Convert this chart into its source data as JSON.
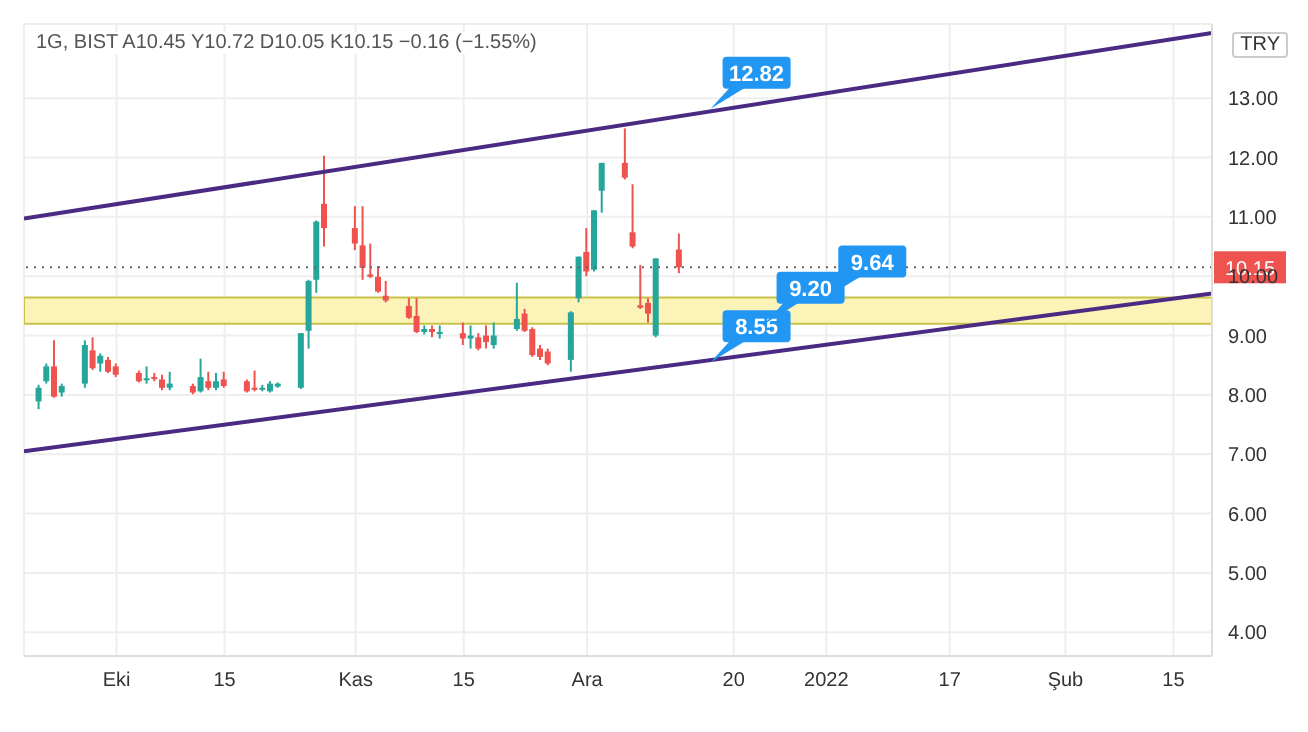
{
  "chart_data": {
    "type": "candlestick",
    "title": "1G, BIST  A10.45  Y10.72  D10.05  K10.15  −0.16 (−1.55%)",
    "x": [
      "2021-09-21",
      "2021-09-22",
      "2021-09-23",
      "2021-09-24",
      "2021-09-27",
      "2021-09-28",
      "2021-09-29",
      "2021-09-30",
      "2021-10-01",
      "2021-10-04",
      "2021-10-05",
      "2021-10-06",
      "2021-10-07",
      "2021-10-08",
      "2021-10-11",
      "2021-10-12",
      "2021-10-13",
      "2021-10-14",
      "2021-10-15",
      "2021-10-18",
      "2021-10-19",
      "2021-10-20",
      "2021-10-21",
      "2021-10-22",
      "2021-10-25",
      "2021-10-26",
      "2021-10-27",
      "2021-10-28",
      "2021-11-01",
      "2021-11-02",
      "2021-11-03",
      "2021-11-04",
      "2021-11-05",
      "2021-11-08",
      "2021-11-09",
      "2021-11-10",
      "2021-11-11",
      "2021-11-12",
      "2021-11-15",
      "2021-11-16",
      "2021-11-17",
      "2021-11-18",
      "2021-11-19",
      "2021-11-22",
      "2021-11-23",
      "2021-11-24",
      "2021-11-25",
      "2021-11-26",
      "2021-11-29",
      "2021-11-30",
      "2021-12-01",
      "2021-12-02",
      "2021-12-03",
      "2021-12-06",
      "2021-12-07",
      "2021-12-08",
      "2021-12-09",
      "2021-12-10",
      "2021-12-13"
    ],
    "ohlc": [
      [
        7.89,
        8.17,
        7.76,
        8.12
      ],
      [
        8.23,
        8.53,
        8.19,
        8.48
      ],
      [
        8.48,
        8.92,
        7.95,
        7.97
      ],
      [
        8.04,
        8.19,
        7.97,
        8.15
      ],
      [
        8.19,
        8.92,
        8.12,
        8.84
      ],
      [
        8.75,
        8.97,
        8.42,
        8.45
      ],
      [
        8.53,
        8.7,
        8.39,
        8.66
      ],
      [
        8.59,
        8.64,
        8.37,
        8.39
      ],
      [
        8.48,
        8.53,
        8.3,
        8.34
      ],
      [
        8.37,
        8.41,
        8.21,
        8.23
      ],
      [
        8.26,
        8.48,
        8.19,
        8.28
      ],
      [
        8.3,
        8.37,
        8.23,
        8.28
      ],
      [
        8.26,
        8.34,
        8.08,
        8.12
      ],
      [
        8.12,
        8.39,
        8.08,
        8.19
      ],
      [
        8.15,
        8.19,
        8.01,
        8.04
      ],
      [
        8.06,
        8.61,
        8.04,
        8.3
      ],
      [
        8.23,
        8.39,
        8.08,
        8.12
      ],
      [
        8.12,
        8.37,
        8.08,
        8.23
      ],
      [
        8.26,
        8.39,
        8.12,
        8.15
      ],
      [
        8.23,
        8.26,
        8.04,
        8.06
      ],
      [
        8.12,
        8.41,
        8.06,
        8.1
      ],
      [
        8.1,
        8.17,
        8.06,
        8.12
      ],
      [
        8.06,
        8.23,
        8.04,
        8.19
      ],
      [
        8.14,
        8.21,
        8.12,
        8.19
      ],
      [
        8.12,
        9.04,
        8.1,
        9.04
      ],
      [
        9.08,
        9.94,
        8.78,
        9.92
      ],
      [
        9.94,
        10.94,
        9.72,
        10.92
      ],
      [
        11.22,
        12.03,
        10.5,
        10.81
      ],
      [
        10.81,
        11.18,
        10.44,
        10.55
      ],
      [
        10.52,
        11.18,
        9.94,
        10.14
      ],
      [
        10.03,
        10.55,
        9.97,
        9.99
      ],
      [
        9.99,
        10.17,
        9.72,
        9.74
      ],
      [
        9.67,
        9.92,
        9.56,
        9.59
      ],
      [
        9.5,
        9.63,
        9.28,
        9.3
      ],
      [
        9.33,
        9.63,
        9.04,
        9.06
      ],
      [
        9.06,
        9.17,
        9.02,
        9.11
      ],
      [
        9.11,
        9.17,
        8.97,
        9.06
      ],
      [
        9.04,
        9.17,
        8.95,
        9.06
      ],
      [
        9.04,
        9.22,
        8.84,
        8.95
      ],
      [
        8.95,
        9.17,
        8.78,
        9.0
      ],
      [
        8.97,
        9.04,
        8.75,
        8.78
      ],
      [
        9.0,
        9.17,
        8.78,
        8.89
      ],
      [
        8.84,
        9.22,
        8.78,
        9.0
      ],
      [
        9.11,
        9.89,
        9.08,
        9.28
      ],
      [
        9.37,
        9.45,
        9.06,
        9.08
      ],
      [
        9.11,
        9.14,
        8.64,
        8.67
      ],
      [
        8.78,
        8.84,
        8.59,
        8.64
      ],
      [
        8.73,
        8.78,
        8.5,
        8.53
      ],
      [
        8.59,
        9.41,
        8.39,
        9.39
      ],
      [
        9.63,
        10.33,
        9.56,
        10.33
      ],
      [
        10.41,
        10.81,
        10.0,
        10.08
      ],
      [
        10.11,
        11.11,
        10.08,
        11.11
      ],
      [
        11.44,
        11.91,
        11.07,
        11.91
      ],
      [
        11.91,
        12.49,
        11.63,
        11.66
      ],
      [
        10.74,
        11.55,
        10.47,
        10.5
      ],
      [
        9.51,
        10.19,
        9.45,
        9.47
      ],
      [
        9.55,
        9.63,
        9.22,
        9.37
      ],
      [
        9.0,
        10.3,
        8.97,
        10.3
      ],
      [
        10.45,
        10.72,
        10.05,
        10.15
      ]
    ],
    "series": [
      {
        "type": "line",
        "x": [
          "2021-09-19",
          "2022-02-20"
        ],
        "values": [
          10.97,
          14.1
        ],
        "color": "#4b2a83"
      },
      {
        "type": "line",
        "x": [
          "2021-09-19",
          "2022-02-20"
        ],
        "values": [
          7.05,
          9.71
        ],
        "color": "#4b2a83"
      }
    ],
    "xlim": [
      "2021-09-19",
      "2022-02-20"
    ],
    "xticks": [
      {
        "value": "2021-10-01",
        "label": "Eki"
      },
      {
        "value": "2021-10-15",
        "label": "15"
      },
      {
        "value": "2021-11-01",
        "label": "Kas"
      },
      {
        "value": "2021-11-15",
        "label": "15"
      },
      {
        "value": "2021-12-01",
        "label": "Ara"
      },
      {
        "value": "2021-12-20",
        "label": "20"
      },
      {
        "value": "2022-01-01",
        "label": "2022"
      },
      {
        "value": "2022-01-17",
        "label": "17"
      },
      {
        "value": "2022-02-01",
        "label": "Şub"
      },
      {
        "value": "2022-02-15",
        "label": "15"
      }
    ],
    "ylim": [
      3.6,
      14.25
    ],
    "yticks": [
      {
        "value": 4,
        "label": "4.00"
      },
      {
        "value": 5,
        "label": "5.00"
      },
      {
        "value": 6,
        "label": "6.00"
      },
      {
        "value": 7,
        "label": "7.00"
      },
      {
        "value": 8,
        "label": "8.00"
      },
      {
        "value": 9,
        "label": "9.00"
      },
      {
        "value": 10,
        "label": "10.00"
      },
      {
        "value": 11,
        "label": "11.00"
      },
      {
        "value": 12,
        "label": "12.00"
      },
      {
        "value": 13,
        "label": "13.00"
      }
    ],
    "bands": [
      {
        "axis": "y",
        "from": 9.2,
        "to": 9.64,
        "color": "#fbf3b8"
      }
    ],
    "ref_lines": [
      {
        "axis": "y",
        "value": 10.15,
        "label": "10.15",
        "color": "#666666",
        "line_style": "dotted"
      }
    ],
    "annotations": [
      "TRY",
      {
        "text": "12.82",
        "x": "2021-12-17",
        "y": 12.82
      },
      {
        "text": "8.55",
        "x": "2021-12-17",
        "y": 8.55
      },
      {
        "text": "9.20",
        "x": "2021-12-24",
        "y": 9.2
      },
      {
        "text": "9.64",
        "x": "2022-01-01",
        "y": 9.64
      }
    ],
    "grid": true
  }
}
